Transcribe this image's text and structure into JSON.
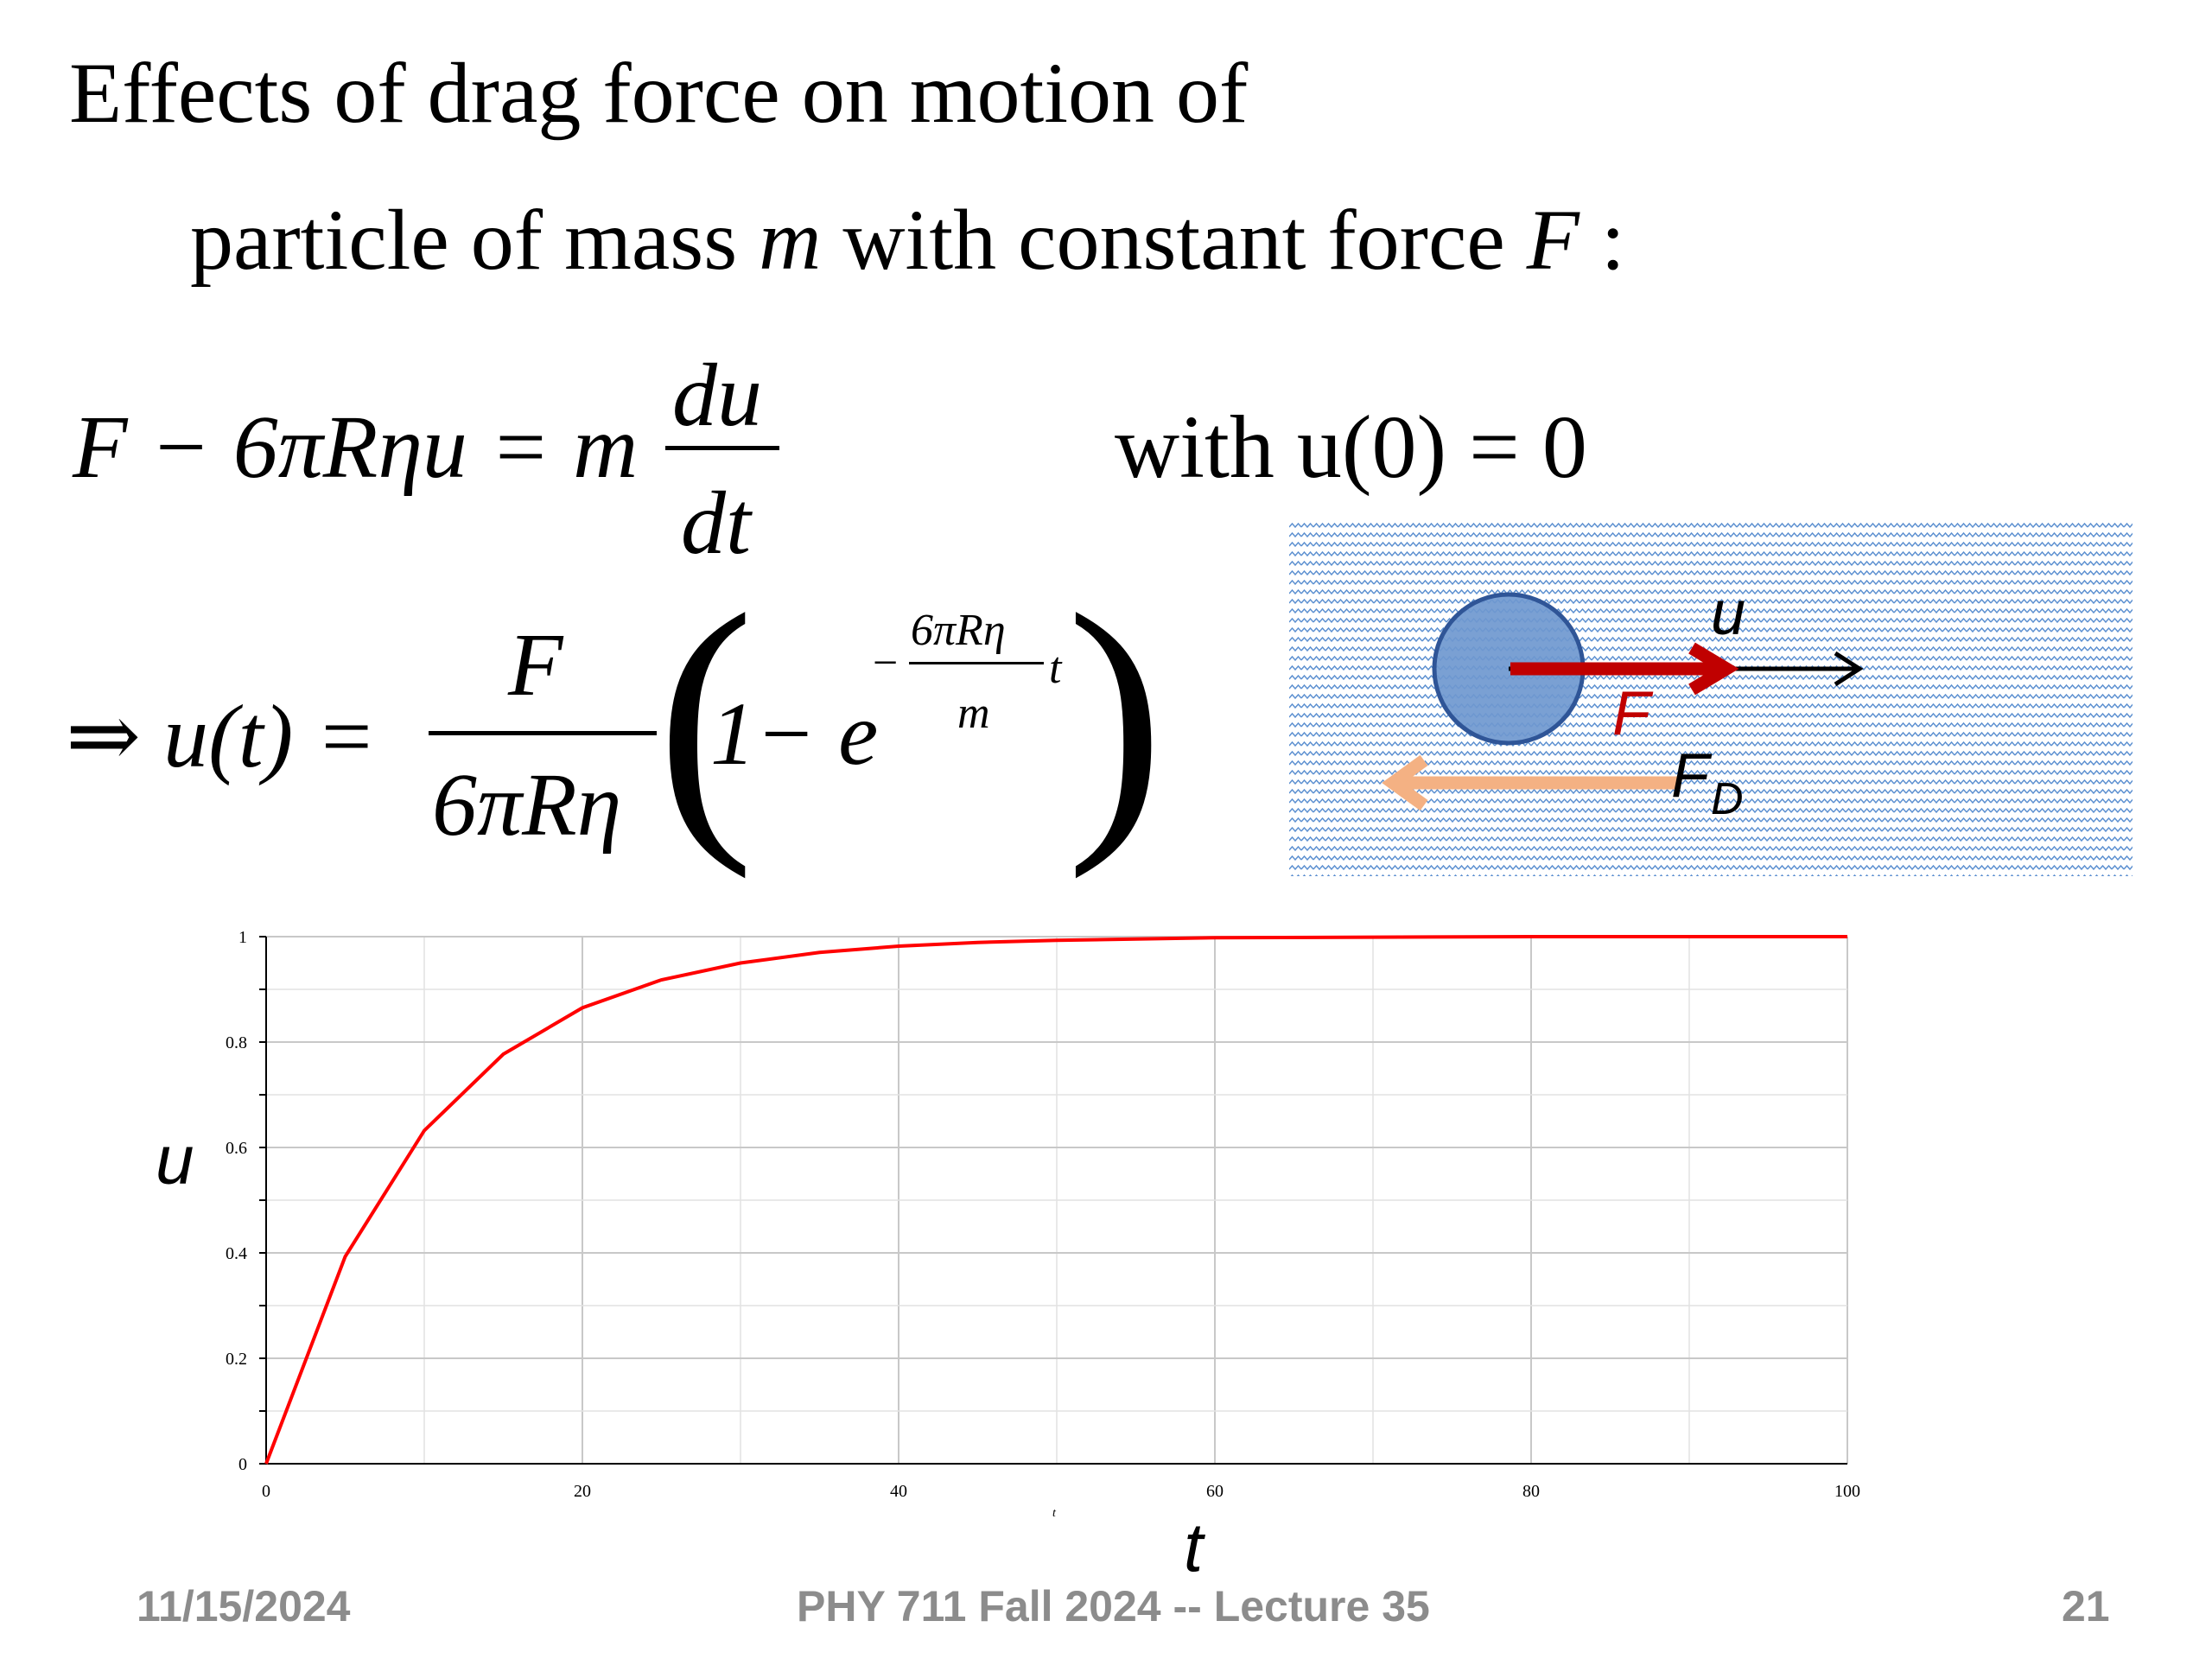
{
  "slide": {
    "title_line1": "Effects of drag force on motion of",
    "title_line2_pre": "particle of mass ",
    "title_line2_m": "m",
    "title_line2_mid": " with constant force ",
    "title_line2_F": "F",
    "title_line2_post": " :"
  },
  "equations": {
    "eq1_lhs": "F − 6πRηu = m",
    "eq1_num": "du",
    "eq1_den": "dt",
    "eq1_cond": "with u(0) = 0",
    "eq2_lhs": "⇒ u(t) =",
    "eq2_num": "F",
    "eq2_den": "6πRη",
    "eq2_one_minus_e": "1− e",
    "eq2_exp_sign": "−",
    "eq2_exp_num": "6πRη",
    "eq2_exp_den": "m",
    "eq2_exp_t": "t"
  },
  "diagram": {
    "label_u": "u",
    "label_F": "F",
    "label_FD_main": "F",
    "label_FD_sub": "D",
    "colors": {
      "water": "#5b8fd0",
      "ball_fill": "#6f98cf",
      "ball_stroke": "#2f5597",
      "force": "#c00000",
      "drag": "#f4b183"
    }
  },
  "chart_data": {
    "type": "line",
    "function": "u(t) = 1 - exp(-t/10)",
    "x": [
      0,
      5,
      10,
      15,
      20,
      25,
      30,
      35,
      40,
      45,
      50,
      60,
      70,
      80,
      90,
      100
    ],
    "y": [
      0,
      0.393,
      0.632,
      0.777,
      0.865,
      0.918,
      0.95,
      0.97,
      0.982,
      0.989,
      0.993,
      0.998,
      0.999,
      1.0,
      1.0,
      1.0
    ],
    "xlim": [
      0,
      100
    ],
    "ylim": [
      0,
      1
    ],
    "xticks": [
      "0",
      "20",
      "40",
      "60",
      "80",
      "100"
    ],
    "yticks": [
      "0",
      "0.2",
      "0.4",
      "0.6",
      "0.8",
      "1"
    ],
    "xlabel_small": "t",
    "xlabel": "t",
    "ylabel": "u",
    "grid": true,
    "line_color": "#ff0000"
  },
  "footer": {
    "date": "11/15/2024",
    "course": "PHY 711  Fall 2024 -- Lecture 35",
    "page": "21"
  }
}
